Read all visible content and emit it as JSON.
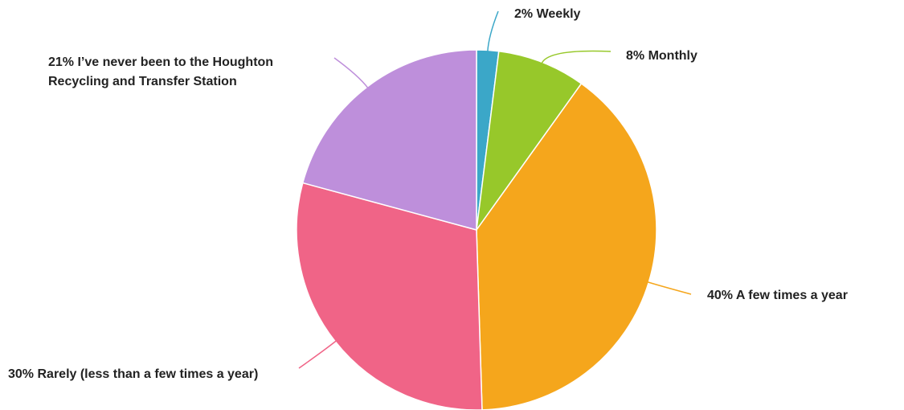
{
  "chart_data": {
    "type": "pie",
    "categories": [
      "Weekly",
      "Monthly",
      "A few times a year",
      "Rarely (less than a few times a year)",
      "I’ve never been to the Houghton Recycling and Transfer Station"
    ],
    "values": [
      2,
      8,
      40,
      30,
      21
    ],
    "value_labels": [
      "2%",
      "8%",
      "40%",
      "30%",
      "21%"
    ],
    "colors": [
      "#3ba7c8",
      "#97c82a",
      "#f5a61c",
      "#f06487",
      "#be8fdb"
    ]
  }
}
